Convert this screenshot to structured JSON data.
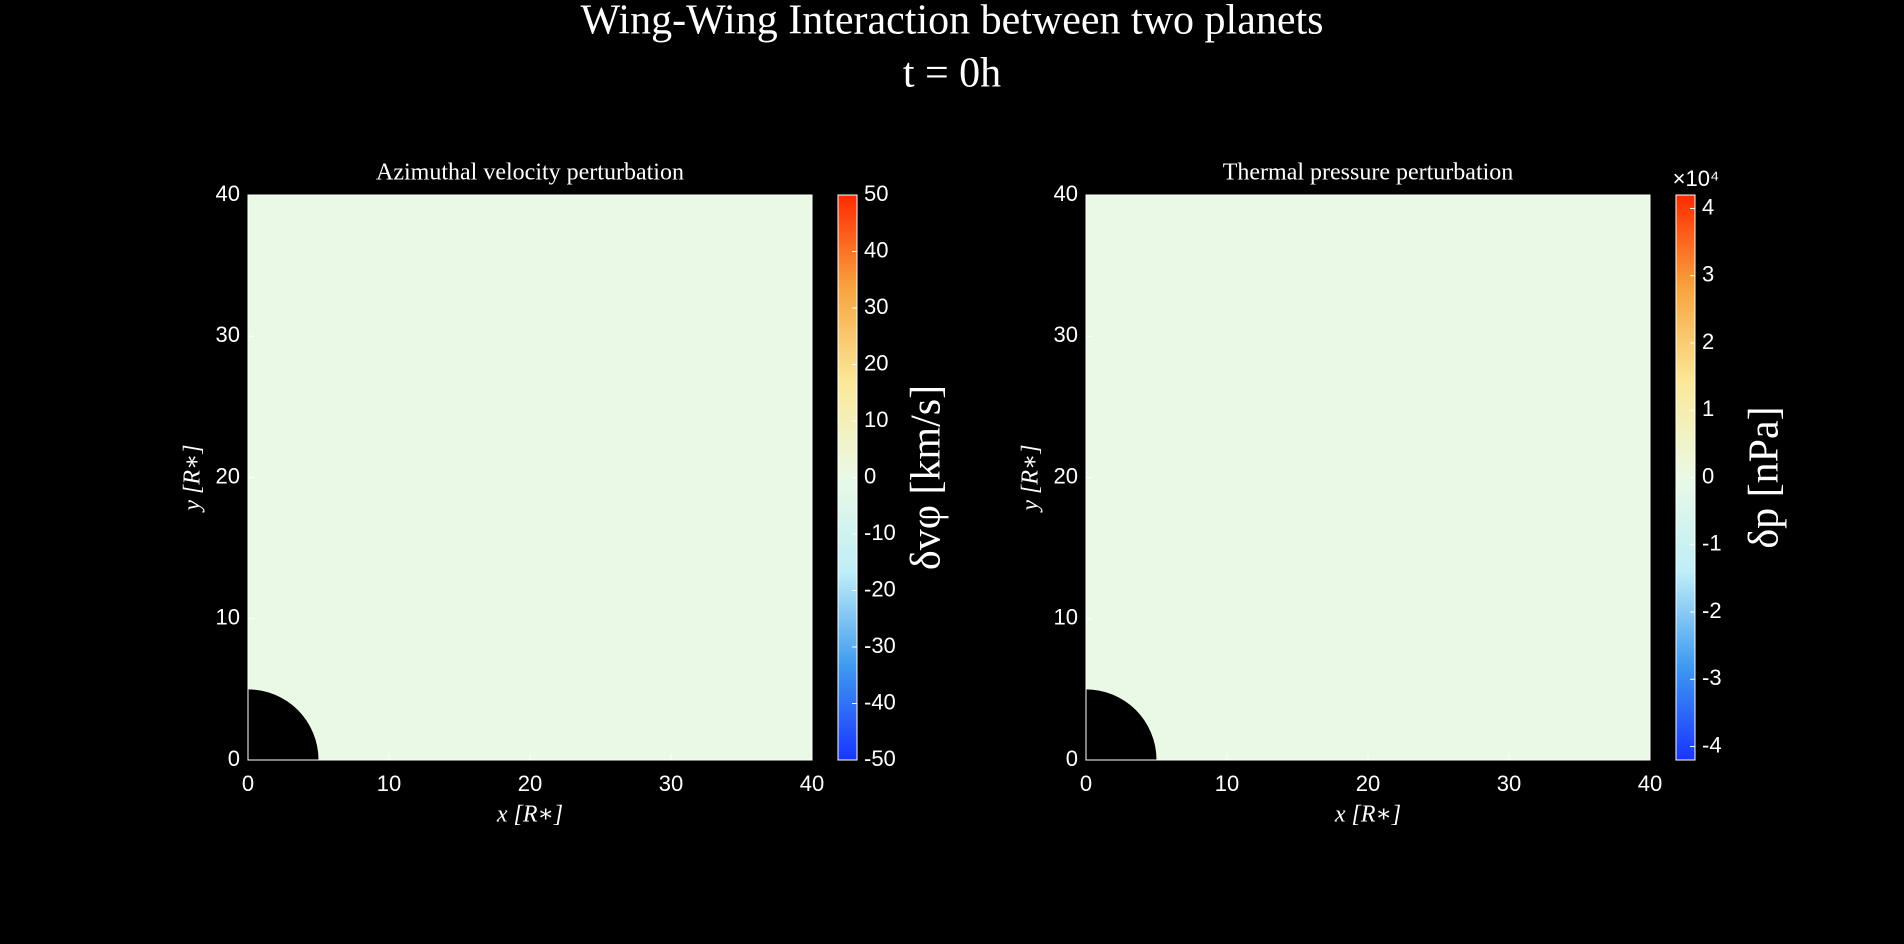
{
  "title": "Wing-Wing Interaction between two planets",
  "subtitle": "t = 0h",
  "chart_data": [
    {
      "type": "heatmap",
      "title": "Azimuthal velocity perturbation",
      "xlabel": "x [R∗]",
      "ylabel": "y [R∗]",
      "xlim": [
        0,
        40
      ],
      "ylim": [
        0,
        40
      ],
      "xticks": [
        0,
        10,
        20,
        30,
        40
      ],
      "yticks": [
        0,
        10,
        20,
        30,
        40
      ],
      "values": [
        [
          0
        ]
      ],
      "body_radius": 5,
      "colorbar_label": "δvφ [km/s]",
      "clim": [
        -50,
        50
      ],
      "cticks": [
        -50,
        -40,
        -30,
        -20,
        -10,
        0,
        10,
        20,
        30,
        40,
        50
      ],
      "colormap": [
        "#1a35ff",
        "#3f9af0",
        "#bfeef8",
        "#eaf9e6",
        "#fbe99a",
        "#f7a540",
        "#ff2a00"
      ]
    },
    {
      "type": "heatmap",
      "title": "Thermal pressure perturbation",
      "xlabel": "x [R∗]",
      "ylabel": "y [R∗]",
      "xlim": [
        0,
        40
      ],
      "ylim": [
        0,
        40
      ],
      "xticks": [
        0,
        10,
        20,
        30,
        40
      ],
      "yticks": [
        0,
        10,
        20,
        30,
        40
      ],
      "values": [
        [
          0
        ]
      ],
      "body_radius": 5,
      "colorbar_label": "δp [nPa]",
      "clim": [
        -42000,
        42000
      ],
      "cexponent": "×10⁴",
      "cticks": [
        {
          "value": -40000,
          "label": "-4"
        },
        {
          "value": -30000,
          "label": "-3"
        },
        {
          "value": -20000,
          "label": "-2"
        },
        {
          "value": -10000,
          "label": "-1"
        },
        0,
        {
          "value": 10000,
          "label": "1"
        },
        {
          "value": 20000,
          "label": "2"
        },
        {
          "value": 30000,
          "label": "3"
        },
        {
          "value": 40000,
          "label": "4"
        }
      ],
      "colormap": [
        "#1a35ff",
        "#3f9af0",
        "#bfeef8",
        "#eaf9e6",
        "#fbe99a",
        "#f7a540",
        "#ff2a00"
      ]
    }
  ]
}
